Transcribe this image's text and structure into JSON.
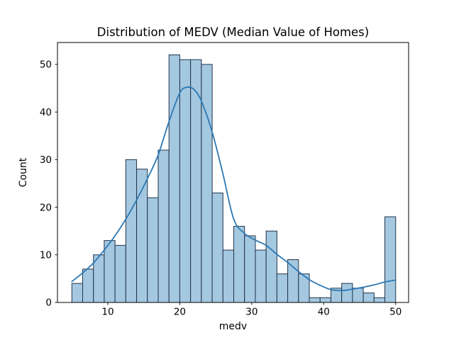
{
  "chart_data": {
    "type": "bar",
    "subtype": "histogram_with_kde",
    "title": "Distribution of MEDV (Median Value of Homes)",
    "xlabel": "medv",
    "ylabel": "Count",
    "bin_start": 5.0,
    "bin_width": 1.5,
    "bin_count": 30,
    "counts": [
      4,
      7,
      10,
      13,
      12,
      30,
      28,
      22,
      32,
      52,
      51,
      51,
      50,
      23,
      11,
      16,
      14,
      11,
      15,
      6,
      9,
      6,
      1,
      1,
      3,
      4,
      3,
      2,
      1,
      18
    ],
    "kde": {
      "x": [
        5,
        6.5,
        8,
        9.5,
        11,
        12.5,
        14,
        15.5,
        17,
        18.5,
        20,
        21,
        22,
        23,
        24.5,
        26,
        27.5,
        29,
        30.5,
        32,
        33.5,
        35,
        36.5,
        38,
        39.5,
        41,
        42.5,
        44,
        45.5,
        47,
        48.5,
        50
      ],
      "y": [
        4.4,
        6.2,
        8.3,
        11,
        14,
        17.5,
        21.5,
        26,
        31,
        38,
        44,
        45.2,
        44.7,
        42.3,
        35.8,
        27,
        17.5,
        14.5,
        13.1,
        12,
        10.1,
        8.4,
        6.5,
        4.8,
        3.6,
        2.7,
        2.5,
        2.8,
        3.2,
        3.7,
        4.3,
        4.7
      ]
    },
    "xticks": [
      10,
      20,
      30,
      40,
      50
    ],
    "yticks": [
      0,
      10,
      20,
      30,
      40,
      50
    ],
    "xlim": [
      3.0,
      51.8
    ],
    "ylim": [
      0,
      54.6
    ],
    "grid": false,
    "colors": {
      "bar_fill": "#a5c8e1",
      "bar_edge": "#20344a",
      "kde_line": "#2c78b3",
      "axis": "#000000",
      "text": "#000000",
      "background": "#ffffff"
    }
  }
}
